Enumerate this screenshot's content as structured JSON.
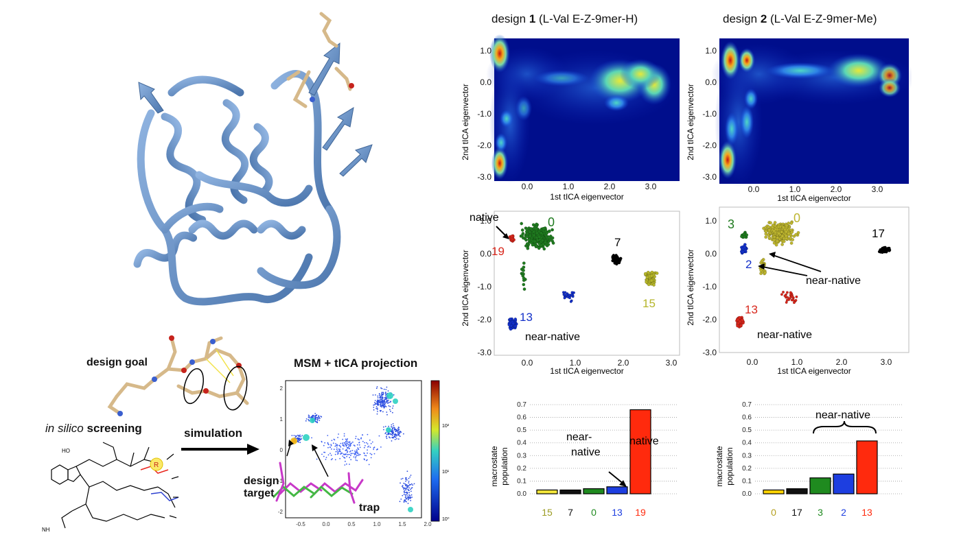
{
  "colors": {
    "protein": "#6f95c8",
    "protein_dark": "#3f6596",
    "heat_low": "#00008b",
    "heat_mid": "#34c4b0",
    "heat_hi": "#d81a12",
    "c0_d1": "#1f7a1f",
    "c7_d1": "#000000",
    "c13_d1": "#1330c9",
    "c15_d1": "#b5b52a",
    "c19_d1": "#d8261b",
    "c0_d2": "#bdb52f",
    "c17_d2": "#000000",
    "c3_d2": "#1f7a1f",
    "c2_d2": "#1330c9",
    "c13_d2": "#d8261b"
  },
  "left_panel": {
    "design_goal_label": "design goal",
    "msm_title": "MSM + tICA projection",
    "in_silico_italic": "in silico",
    "screening_label": "screening",
    "simulation_label": "simulation",
    "design_target_line1": "design",
    "design_target_line2": "target",
    "trap_label": "trap",
    "molecule_r_label": "R",
    "molecule_nh_label": "NH",
    "molecule_ho_label": "HO",
    "msm_x_ticks": [
      "-0.5",
      "0.0",
      "0.5",
      "1.0",
      "1.5",
      "2.0"
    ],
    "msm_y_ticks": [
      "2",
      "1",
      "0",
      "-1",
      "-2"
    ],
    "colorbar_ticks": [
      "10²",
      "10¹",
      "10⁰"
    ]
  },
  "design1": {
    "header_prefix": "design ",
    "header_num": "1",
    "header_suffix": " (L-Val E-Z-9mer-H)",
    "ylabel": "2nd tICA eigenvector",
    "xlabel": "1st tICA eigenvector",
    "heat_x_ticks": [
      "0.0",
      "1.0",
      "2.0",
      "3.0"
    ],
    "heat_y_ticks": [
      "1.0",
      "0.0",
      "-1.0",
      "-2.0",
      "-3.0"
    ],
    "scatter_x_ticks": [
      "0.0",
      "1.0",
      "2.0",
      "3.0"
    ],
    "scatter_y_ticks": [
      "1.0",
      "0.0",
      "-1.0",
      "-2.0",
      "-3.0"
    ],
    "cluster_labels": {
      "c0": "0",
      "c7": "7",
      "c19": "19",
      "c13": "13",
      "c15": "15"
    },
    "native_label": "native",
    "near_native_label": "near-native"
  },
  "design2": {
    "header_prefix": "design ",
    "header_num": "2",
    "header_suffix": " (L-Val E-Z-9mer-Me)",
    "ylabel": "2nd tICA eigenvector",
    "xlabel": "1st tICA eigenvector",
    "heat_x_ticks": [
      "0.0",
      "1.0",
      "2.0",
      "3.0"
    ],
    "heat_y_ticks": [
      "1.0",
      "0.0",
      "-1.0",
      "-2.0",
      "-3.0"
    ],
    "scatter_x_ticks": [
      "0.0",
      "1.0",
      "2.0",
      "3.0"
    ],
    "scatter_y_ticks": [
      "1.0",
      "0.0",
      "-1.0",
      "-2.0",
      "-3.0"
    ],
    "cluster_labels": {
      "c3": "3",
      "c0": "0",
      "c17": "17",
      "c2": "2",
      "c13": "13"
    },
    "near_native_arrow_label": "near-native",
    "near_native_label": "near-native"
  },
  "chart_data": [
    {
      "type": "bar",
      "title": "",
      "xlabel": "",
      "ylabel": "macrostate population",
      "ylim": [
        0,
        0.7
      ],
      "yticks": [
        "0.0",
        "0.1",
        "0.2",
        "0.3",
        "0.4",
        "0.5",
        "0.6",
        "0.7"
      ],
      "categories": [
        "15",
        "7",
        "0",
        "13",
        "19"
      ],
      "values": [
        0.03,
        0.03,
        0.04,
        0.055,
        0.66
      ],
      "annotations": [
        "near-native",
        "native"
      ],
      "grid": true
    },
    {
      "type": "bar",
      "title": "",
      "xlabel": "",
      "ylabel": "macrostate population",
      "ylim": [
        0,
        0.7
      ],
      "yticks": [
        "0.0",
        "0.1",
        "0.2",
        "0.3",
        "0.4",
        "0.5",
        "0.6",
        "0.7"
      ],
      "categories": [
        "0",
        "17",
        "3",
        "2",
        "13"
      ],
      "values": [
        0.03,
        0.04,
        0.125,
        0.155,
        0.415
      ],
      "annotations": [
        "near-native"
      ],
      "grid": true
    }
  ]
}
